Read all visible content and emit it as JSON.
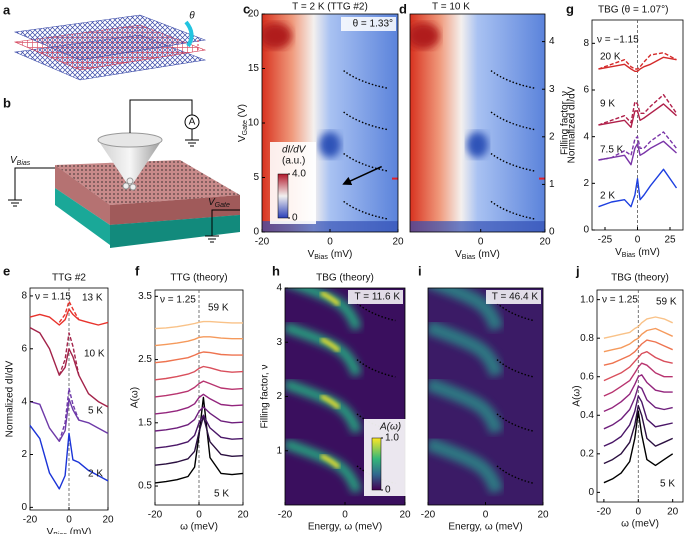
{
  "figure": {
    "a": {
      "label": "a",
      "angle": "θ"
    },
    "b": {
      "label": "b",
      "meter": "A",
      "bias": {
        "text": "V",
        "sub": "Bias"
      },
      "gate": {
        "text": "V",
        "sub": "Gate"
      }
    }
  },
  "chart_data": [
    {
      "type": "heatmap",
      "label": "c",
      "title": "T = 2 K (TTG #2)",
      "annotation": "θ = 1.33°",
      "colormap": "coolwarm",
      "xlabel": {
        "text": "V",
        "sub": "Bias",
        "tail": " (mV)"
      },
      "ylabel": {
        "text": "V",
        "sub": "Gate",
        "tail": " (V)"
      },
      "xlim": [
        -20,
        20
      ],
      "xticks": [
        -20,
        0,
        20
      ],
      "ylim": [
        0,
        20
      ],
      "yticks": [
        0,
        5,
        10,
        15,
        20
      ],
      "colorbar": {
        "title": "dI/dV",
        "unit": "(a.u.)",
        "clim": [
          0,
          4
        ],
        "ticks": [
          {
            "value": 4,
            "label": "4.0"
          },
          0
        ]
      }
    },
    {
      "type": "heatmap",
      "label": "d",
      "title": "T = 10 K",
      "colormap": "coolwarm",
      "xlabel": {
        "text": "V",
        "sub": "Bias",
        "tail": " (mV)"
      },
      "xlim": [
        -22,
        20
      ],
      "xticks": [
        0,
        20
      ],
      "y2label": "Filling factor, ν",
      "y2lim": [
        0,
        4.58
      ],
      "y2ticks": [
        0,
        1,
        2,
        3,
        4
      ]
    },
    {
      "type": "line",
      "label": "g",
      "title": "TBG (θ = 1.07°)",
      "annotation": "ν = −1.15",
      "xlabel": {
        "text": "V",
        "sub": "Bias",
        "tail": " (mV)"
      },
      "ylabel": "Normalized dI/dV",
      "xlim": [
        -35,
        35
      ],
      "xticks": [
        -25,
        0,
        25
      ],
      "ylim": [
        0,
        9
      ],
      "yticks": [
        0,
        2,
        4,
        6,
        8
      ],
      "x": [
        -30,
        -20,
        -10,
        -5,
        -2,
        0,
        2,
        5,
        10,
        20,
        30
      ],
      "series": [
        {
          "name": "20 K",
          "color": "#d42a2a",
          "values": [
            6.9,
            7.0,
            7.1,
            6.9,
            6.8,
            6.8,
            6.9,
            7.0,
            7.1,
            7.4,
            7.3
          ]
        },
        {
          "color": "#d42a2a",
          "dashed": true,
          "values": [
            6.9,
            7.1,
            7.3,
            7.0,
            6.9,
            6.9,
            7.0,
            7.2,
            7.5,
            7.6,
            7.3
          ]
        },
        {
          "name": "9 K",
          "color": "#b0204a",
          "values": [
            4.5,
            4.6,
            4.7,
            4.4,
            5.1,
            5.1,
            4.7,
            4.8,
            5.0,
            5.4,
            4.9
          ]
        },
        {
          "color": "#b0204a",
          "dashed": true,
          "values": [
            4.5,
            4.7,
            4.9,
            4.6,
            5.5,
            5.4,
            5.0,
            5.0,
            5.3,
            5.8,
            5.0
          ]
        },
        {
          "name": "7.5 K",
          "color": "#7a35a8",
          "values": [
            3.0,
            3.1,
            3.2,
            2.8,
            3.5,
            3.7,
            3.2,
            3.3,
            3.5,
            3.8,
            3.3
          ]
        },
        {
          "color": "#7a35a8",
          "dashed": true,
          "values": [
            3.0,
            3.1,
            3.4,
            3.2,
            3.9,
            4.0,
            3.5,
            3.5,
            3.8,
            4.2,
            3.5
          ]
        },
        {
          "name": "2 K",
          "color": "#1d3fe0",
          "values": [
            1.0,
            1.2,
            1.3,
            1.0,
            1.5,
            2.2,
            1.3,
            1.5,
            1.9,
            2.6,
            1.8
          ]
        }
      ]
    },
    {
      "type": "line",
      "label": "e",
      "title": "TTG #2",
      "annotation": "ν = 1.15",
      "xlabel": {
        "text": "V",
        "sub": "Bias",
        "tail": " (mV)"
      },
      "ylabel": "Normalized dI/dV",
      "xlim": [
        -20,
        20
      ],
      "xticks": [
        -20,
        0,
        20
      ],
      "ylim": [
        -0.1,
        8.3
      ],
      "yticks": [
        0,
        2,
        4,
        6,
        8
      ],
      "x": [
        -20,
        -15,
        -10,
        -5,
        -2,
        0,
        2,
        5,
        10,
        15,
        20
      ],
      "series": [
        {
          "name": "13 K",
          "color": "#e8332c",
          "values": [
            7.2,
            7.3,
            7.2,
            6.9,
            7.1,
            7.5,
            7.3,
            7.1,
            7.0,
            6.9,
            7.0
          ]
        },
        {
          "color": "#e8332c",
          "dashed": true,
          "values": [
            null,
            null,
            null,
            7.0,
            7.3,
            7.8,
            7.5,
            7.1,
            null,
            null,
            null
          ]
        },
        {
          "name": "10 K",
          "color": "#a3234a",
          "values": [
            6.8,
            6.6,
            6.0,
            5.0,
            5.3,
            6.0,
            5.7,
            5.0,
            4.3,
            4.0,
            3.8
          ]
        },
        {
          "color": "#a3234a",
          "dashed": true,
          "values": [
            null,
            null,
            null,
            5.0,
            5.6,
            6.6,
            6.1,
            5.0,
            null,
            null,
            null
          ]
        },
        {
          "name": "5 K",
          "color": "#6e3aa8",
          "values": [
            4.0,
            3.9,
            3.0,
            2.5,
            2.9,
            4.1,
            3.7,
            3.3,
            3.2,
            3.0,
            2.8
          ]
        },
        {
          "color": "#6e3aa8",
          "dashed": true,
          "values": [
            null,
            null,
            null,
            2.5,
            3.2,
            4.5,
            3.9,
            3.3,
            null,
            null,
            null
          ]
        },
        {
          "name": "2 K",
          "color": "#1b34d8",
          "values": [
            3.1,
            2.6,
            1.3,
            0.7,
            1.2,
            2.8,
            1.8,
            1.7,
            1.4,
            1.2,
            1.0
          ]
        }
      ]
    },
    {
      "type": "line",
      "label": "f",
      "title": "TTG (theory)",
      "annotation": "ν = 1.25",
      "xlabel": "ω (meV)",
      "ylabel": "A(ω)",
      "xlim": [
        -20,
        20
      ],
      "xticks": [
        -20,
        0,
        20
      ],
      "ylim": [
        0.2,
        3.6
      ],
      "yticks": [
        0.5,
        1.5,
        2.5,
        3.5
      ],
      "x": [
        -20,
        -15,
        -10,
        -5,
        -2,
        0,
        2,
        5,
        10,
        15,
        20
      ],
      "series": [
        {
          "name": "5 K",
          "color": "#000000",
          "values": [
            0.55,
            0.57,
            0.6,
            0.65,
            0.8,
            1.3,
            1.9,
            0.95,
            0.7,
            0.68,
            0.7
          ]
        },
        {
          "color": "#2b1040",
          "values": [
            0.83,
            0.85,
            0.88,
            0.93,
            1.05,
            1.35,
            1.6,
            1.2,
            1.0,
            0.97,
            0.98
          ]
        },
        {
          "color": "#4a1667",
          "values": [
            1.1,
            1.12,
            1.15,
            1.2,
            1.3,
            1.5,
            1.62,
            1.42,
            1.27,
            1.24,
            1.25
          ]
        },
        {
          "color": "#6e1f7c",
          "values": [
            1.37,
            1.39,
            1.42,
            1.47,
            1.55,
            1.68,
            1.75,
            1.65,
            1.53,
            1.5,
            1.51
          ]
        },
        {
          "color": "#93257d",
          "values": [
            1.64,
            1.66,
            1.69,
            1.74,
            1.8,
            1.9,
            1.95,
            1.88,
            1.79,
            1.77,
            1.78
          ]
        },
        {
          "color": "#b8346f",
          "values": [
            1.91,
            1.93,
            1.96,
            2.0,
            2.06,
            2.12,
            2.16,
            2.12,
            2.05,
            2.03,
            2.04
          ]
        },
        {
          "color": "#d94f5c",
          "values": [
            2.18,
            2.2,
            2.23,
            2.27,
            2.31,
            2.36,
            2.39,
            2.37,
            2.32,
            2.3,
            2.31
          ]
        },
        {
          "color": "#ee7450",
          "values": [
            2.45,
            2.47,
            2.5,
            2.53,
            2.57,
            2.6,
            2.62,
            2.61,
            2.58,
            2.57,
            2.57
          ]
        },
        {
          "color": "#f59a5c",
          "values": [
            2.72,
            2.74,
            2.76,
            2.79,
            2.82,
            2.85,
            2.86,
            2.86,
            2.84,
            2.83,
            2.83
          ]
        },
        {
          "name": "59 K",
          "color": "#f9c288",
          "values": [
            2.99,
            3.0,
            3.02,
            3.05,
            3.07,
            3.09,
            3.1,
            3.1,
            3.09,
            3.08,
            3.08
          ]
        }
      ]
    },
    {
      "type": "heatmap",
      "label": "h",
      "title": "TBG (theory)",
      "annotation": "T = 11.6 K",
      "colormap": "viridis",
      "xlabel": "Energy, ω (meV)",
      "ylabel": "Filling factor, ν",
      "xlim": [
        -20,
        20
      ],
      "xticks": [
        -20,
        0,
        20
      ],
      "ylim": [
        0,
        4
      ],
      "yticks": [
        1,
        2,
        3,
        4
      ],
      "colorbar": {
        "title": "A(ω)",
        "clim": [
          0,
          1
        ],
        "ticks": [
          {
            "value": 1,
            "label": "1.0"
          },
          0
        ]
      }
    },
    {
      "type": "heatmap",
      "label": "i",
      "annotation": "T = 46.4 K",
      "colormap": "viridis",
      "xlabel": "Energy, ω (meV)",
      "xlim": [
        -20,
        20
      ],
      "xticks": [
        -20,
        0,
        20
      ],
      "ylim": [
        0,
        4
      ]
    },
    {
      "type": "line",
      "label": "j",
      "title": "TBG (theory)",
      "annotation": "ν = 1.25",
      "xlabel": "ω (meV)",
      "ylabel": "A(ω)",
      "xlim": [
        -24,
        26
      ],
      "xticks": [
        -20,
        0,
        20
      ],
      "ylim": [
        -0.05,
        1.05
      ],
      "yticks": [
        0,
        0.2,
        0.4,
        0.6,
        0.8,
        {
          "value": 1,
          "label": "1.0"
        }
      ],
      "x": [
        -20,
        -15,
        -10,
        -5,
        -2,
        0,
        2,
        5,
        10,
        15,
        20
      ],
      "series": [
        {
          "name": "5 K",
          "color": "#000000",
          "values": [
            0.05,
            0.07,
            0.1,
            0.16,
            0.28,
            0.42,
            0.3,
            0.17,
            0.14,
            0.17,
            0.2
          ]
        },
        {
          "color": "#2b1040",
          "values": [
            0.15,
            0.17,
            0.2,
            0.26,
            0.35,
            0.45,
            0.4,
            0.28,
            0.24,
            0.26,
            0.28
          ]
        },
        {
          "color": "#4a1667",
          "values": [
            0.24,
            0.26,
            0.29,
            0.35,
            0.42,
            0.5,
            0.47,
            0.38,
            0.34,
            0.35,
            0.36
          ]
        },
        {
          "color": "#6e1f7c",
          "values": [
            0.33,
            0.35,
            0.38,
            0.43,
            0.49,
            0.55,
            0.54,
            0.48,
            0.44,
            0.43,
            0.44
          ]
        },
        {
          "color": "#93257d",
          "values": [
            0.42,
            0.44,
            0.47,
            0.51,
            0.56,
            0.6,
            0.61,
            0.57,
            0.53,
            0.52,
            0.52
          ]
        },
        {
          "color": "#b8346f",
          "values": [
            0.5,
            0.52,
            0.55,
            0.58,
            0.62,
            0.65,
            0.67,
            0.66,
            0.62,
            0.6,
            0.6
          ]
        },
        {
          "color": "#d94f5c",
          "values": [
            0.58,
            0.6,
            0.62,
            0.65,
            0.68,
            0.7,
            0.72,
            0.73,
            0.7,
            0.68,
            0.67
          ]
        },
        {
          "color": "#ee7450",
          "values": [
            0.66,
            0.67,
            0.69,
            0.71,
            0.73,
            0.75,
            0.77,
            0.79,
            0.78,
            0.76,
            0.74
          ]
        },
        {
          "color": "#f59a5c",
          "values": [
            0.73,
            0.74,
            0.75,
            0.77,
            0.79,
            0.8,
            0.82,
            0.84,
            0.85,
            0.83,
            0.81
          ]
        },
        {
          "name": "59 K",
          "color": "#f9c288",
          "values": [
            0.8,
            0.81,
            0.82,
            0.83,
            0.85,
            0.86,
            0.88,
            0.9,
            0.91,
            0.9,
            0.88
          ]
        }
      ]
    }
  ]
}
